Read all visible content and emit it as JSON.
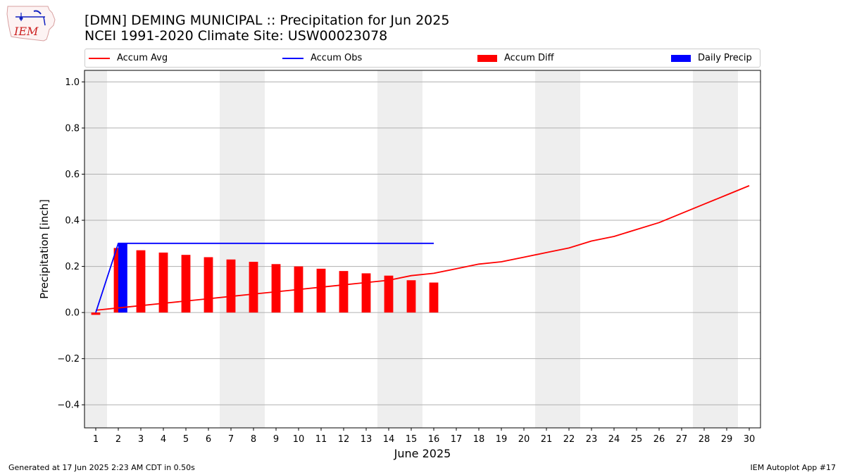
{
  "header": {
    "title_line1": "[DMN] DEMING MUNICIPAL :: Precipitation for Jun 2025",
    "title_line2": "NCEI 1991-2020 Climate Site: USW00023078",
    "logo_text": "IEM"
  },
  "legend": [
    {
      "label": "Accum Avg",
      "kind": "line",
      "color": "#ff0000"
    },
    {
      "label": "Accum Obs",
      "kind": "line",
      "color": "#0000ff"
    },
    {
      "label": "Accum Diff",
      "kind": "bar",
      "color": "#ff0000"
    },
    {
      "label": "Daily Precip",
      "kind": "bar",
      "color": "#0000ff"
    }
  ],
  "footer": {
    "generated": "Generated at 17 Jun 2025 2:23 AM CDT in 0.50s",
    "app": "IEM Autoplot App #17"
  },
  "chart_data": {
    "type": "bar",
    "xlabel": "June 2025",
    "ylabel": "Precipitation [inch]",
    "ylim": [
      -0.5,
      1.05
    ],
    "yticks": [
      -0.4,
      -0.2,
      0.0,
      0.2,
      0.4,
      0.6,
      0.8,
      1.0
    ],
    "ytick_labels": [
      "−0.4",
      "−0.2",
      "0.0",
      "0.2",
      "0.4",
      "0.6",
      "0.8",
      "1.0"
    ],
    "x_days": [
      1,
      2,
      3,
      4,
      5,
      6,
      7,
      8,
      9,
      10,
      11,
      12,
      13,
      14,
      15,
      16,
      17,
      18,
      19,
      20,
      21,
      22,
      23,
      24,
      25,
      26,
      27,
      28,
      29,
      30
    ],
    "weekend_days": [
      1,
      7,
      8,
      14,
      15,
      21,
      22,
      28,
      29
    ],
    "grid": true,
    "legend_position": "top",
    "series": [
      {
        "name": "Accum Avg",
        "type": "line",
        "color": "#ff0000",
        "x": [
          1,
          2,
          3,
          4,
          5,
          6,
          7,
          8,
          9,
          10,
          11,
          12,
          13,
          14,
          15,
          16,
          17,
          18,
          19,
          20,
          21,
          22,
          23,
          24,
          25,
          26,
          27,
          28,
          29,
          30
        ],
        "values": [
          0.01,
          0.02,
          0.03,
          0.04,
          0.05,
          0.06,
          0.07,
          0.08,
          0.09,
          0.1,
          0.11,
          0.12,
          0.13,
          0.14,
          0.16,
          0.17,
          0.19,
          0.21,
          0.22,
          0.24,
          0.26,
          0.28,
          0.31,
          0.33,
          0.36,
          0.39,
          0.43,
          0.47,
          0.51,
          0.55
        ]
      },
      {
        "name": "Accum Obs",
        "type": "line",
        "color": "#0000ff",
        "x": [
          1,
          2,
          3,
          4,
          5,
          6,
          7,
          8,
          9,
          10,
          11,
          12,
          13,
          14,
          15,
          16
        ],
        "values": [
          0.0,
          0.3,
          0.3,
          0.3,
          0.3,
          0.3,
          0.3,
          0.3,
          0.3,
          0.3,
          0.3,
          0.3,
          0.3,
          0.3,
          0.3,
          0.3
        ]
      },
      {
        "name": "Accum Diff",
        "type": "bar",
        "color": "#ff0000",
        "x": [
          1,
          2,
          3,
          4,
          5,
          6,
          7,
          8,
          9,
          10,
          11,
          12,
          13,
          14,
          15,
          16
        ],
        "values": [
          -0.01,
          0.28,
          0.27,
          0.26,
          0.25,
          0.24,
          0.23,
          0.22,
          0.21,
          0.2,
          0.19,
          0.18,
          0.17,
          0.16,
          0.14,
          0.13
        ]
      },
      {
        "name": "Daily Precip",
        "type": "bar",
        "color": "#0000ff",
        "x": [
          2
        ],
        "values": [
          0.3
        ]
      }
    ]
  }
}
